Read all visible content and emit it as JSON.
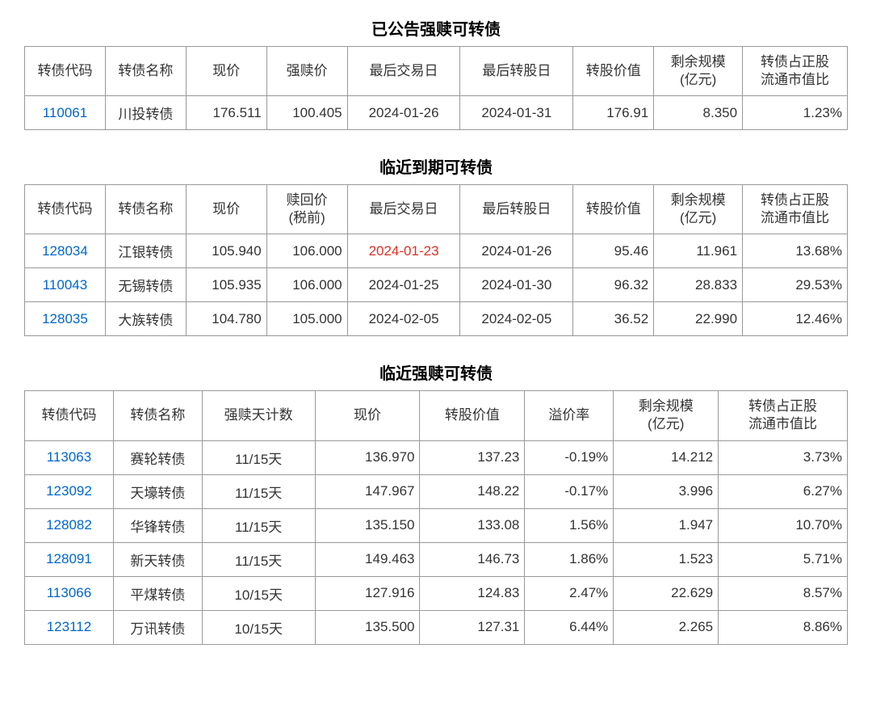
{
  "colors": {
    "link": "#0066cc",
    "highlight": "#d93025",
    "border": "#999999",
    "text": "#333333",
    "background": "#ffffff"
  },
  "section1": {
    "title": "已公告强赎可转债",
    "headers": [
      "转债代码",
      "转债名称",
      "现价",
      "强赎价",
      "最后交易日",
      "最后转股日",
      "转股价值",
      "剩余规模\n(亿元)",
      "转债占正股\n流通市值比"
    ],
    "rows": [
      {
        "code": "110061",
        "name": "川投转债",
        "price": "176.511",
        "redeem": "100.405",
        "last_trade": "2024-01-26",
        "last_conv": "2024-01-31",
        "conv_value": "176.91",
        "remain": "8.350",
        "ratio": "1.23%"
      }
    ]
  },
  "section2": {
    "title": "临近到期可转债",
    "headers": [
      "转债代码",
      "转债名称",
      "现价",
      "赎回价\n(税前)",
      "最后交易日",
      "最后转股日",
      "转股价值",
      "剩余规模\n(亿元)",
      "转债占正股\n流通市值比"
    ],
    "rows": [
      {
        "code": "128034",
        "name": "江银转债",
        "price": "105.940",
        "redeem": "106.000",
        "last_trade": "2024-01-23",
        "last_trade_hl": true,
        "last_conv": "2024-01-26",
        "conv_value": "95.46",
        "remain": "11.961",
        "ratio": "13.68%"
      },
      {
        "code": "110043",
        "name": "无锡转债",
        "price": "105.935",
        "redeem": "106.000",
        "last_trade": "2024-01-25",
        "last_conv": "2024-01-30",
        "conv_value": "96.32",
        "remain": "28.833",
        "ratio": "29.53%"
      },
      {
        "code": "128035",
        "name": "大族转债",
        "price": "104.780",
        "redeem": "105.000",
        "last_trade": "2024-02-05",
        "last_conv": "2024-02-05",
        "conv_value": "36.52",
        "remain": "22.990",
        "ratio": "12.46%"
      }
    ]
  },
  "section3": {
    "title": "临近强赎可转债",
    "headers": [
      "转债代码",
      "转债名称",
      "强赎天计数",
      "现价",
      "转股价值",
      "溢价率",
      "剩余规模\n(亿元)",
      "转债占正股\n流通市值比"
    ],
    "rows": [
      {
        "code": "113063",
        "name": "赛轮转债",
        "days": "11/15天",
        "price": "136.970",
        "conv_value": "137.23",
        "premium": "-0.19%",
        "remain": "14.212",
        "ratio": "3.73%"
      },
      {
        "code": "123092",
        "name": "天壕转债",
        "days": "11/15天",
        "price": "147.967",
        "conv_value": "148.22",
        "premium": "-0.17%",
        "remain": "3.996",
        "ratio": "6.27%"
      },
      {
        "code": "128082",
        "name": "华锋转债",
        "days": "11/15天",
        "price": "135.150",
        "conv_value": "133.08",
        "premium": "1.56%",
        "remain": "1.947",
        "ratio": "10.70%"
      },
      {
        "code": "128091",
        "name": "新天转债",
        "days": "11/15天",
        "price": "149.463",
        "conv_value": "146.73",
        "premium": "1.86%",
        "remain": "1.523",
        "ratio": "5.71%"
      },
      {
        "code": "113066",
        "name": "平煤转债",
        "days": "10/15天",
        "price": "127.916",
        "conv_value": "124.83",
        "premium": "2.47%",
        "remain": "22.629",
        "ratio": "8.57%"
      },
      {
        "code": "123112",
        "name": "万讯转债",
        "days": "10/15天",
        "price": "135.500",
        "conv_value": "127.31",
        "premium": "6.44%",
        "remain": "2.265",
        "ratio": "8.86%"
      }
    ]
  }
}
